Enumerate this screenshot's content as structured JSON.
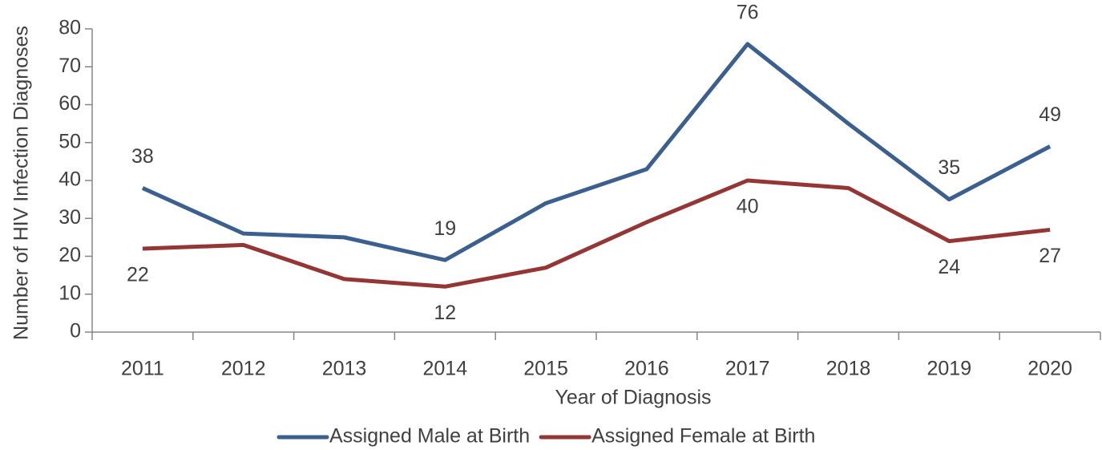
{
  "chart_data": {
    "type": "line",
    "x_label": "Year of Diagnosis",
    "y_label": "Number of HIV Infection Diagnoses",
    "categories": [
      "2011",
      "2012",
      "2013",
      "2014",
      "2015",
      "2016",
      "2017",
      "2018",
      "2019",
      "2020"
    ],
    "series": [
      {
        "name": "Assigned Male at Birth",
        "color": "#3b5f8e",
        "values": [
          38,
          26,
          25,
          19,
          34,
          43,
          76,
          55,
          35,
          49
        ],
        "value_labels": [
          "38",
          null,
          null,
          "19",
          null,
          null,
          "76",
          null,
          "35",
          "49"
        ]
      },
      {
        "name": "Assigned Female at Birth",
        "color": "#943634",
        "values": [
          22,
          23,
          14,
          12,
          17,
          29,
          40,
          38,
          24,
          27
        ],
        "value_labels": [
          "22",
          null,
          null,
          "12",
          null,
          null,
          "40",
          null,
          "24",
          "27"
        ]
      }
    ],
    "ylim": [
      0,
      80
    ],
    "yticks": [
      0,
      10,
      20,
      30,
      40,
      50,
      60,
      70,
      80
    ],
    "grid": false,
    "legend": "bottom"
  }
}
